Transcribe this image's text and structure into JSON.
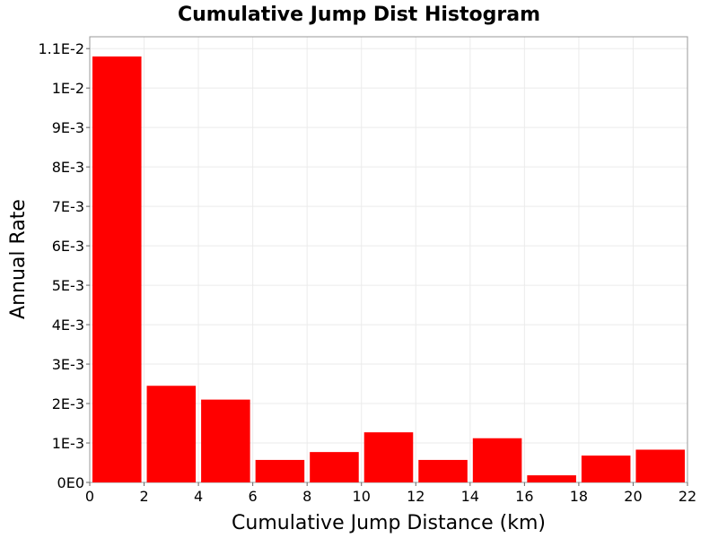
{
  "chart_data": {
    "type": "bar",
    "title": "Cumulative Jump Dist Histogram",
    "xlabel": "Cumulative Jump Distance (km)",
    "ylabel": "Annual Rate",
    "xlim": [
      0,
      22
    ],
    "ylim": [
      0,
      0.0113
    ],
    "x_ticks": [
      "0",
      "2",
      "4",
      "6",
      "8",
      "10",
      "12",
      "14",
      "16",
      "18",
      "20",
      "22"
    ],
    "x_tick_values": [
      0,
      2,
      4,
      6,
      8,
      10,
      12,
      14,
      16,
      18,
      20,
      22
    ],
    "y_ticks": [
      "0E0",
      "1E-3",
      "2E-3",
      "3E-3",
      "4E-3",
      "5E-3",
      "6E-3",
      "7E-3",
      "8E-3",
      "9E-3",
      "1E-2",
      "1.1E-2"
    ],
    "y_tick_values": [
      0,
      0.001,
      0.002,
      0.003,
      0.004,
      0.005,
      0.006,
      0.007,
      0.008,
      0.009,
      0.01,
      0.011
    ],
    "bin_width": 2,
    "bins": [
      {
        "x": 1,
        "value": 0.0108
      },
      {
        "x": 3,
        "value": 0.00245
      },
      {
        "x": 5,
        "value": 0.0021
      },
      {
        "x": 7,
        "value": 0.00057
      },
      {
        "x": 9,
        "value": 0.00077
      },
      {
        "x": 11,
        "value": 0.00127
      },
      {
        "x": 13,
        "value": 0.00057
      },
      {
        "x": 15,
        "value": 0.00112
      },
      {
        "x": 17,
        "value": 0.00018
      },
      {
        "x": 19,
        "value": 0.00068
      },
      {
        "x": 21,
        "value": 0.00083
      }
    ],
    "bar_color": "#ff0000",
    "grid": true,
    "grid_color": "#ebebeb",
    "legend": "none"
  }
}
